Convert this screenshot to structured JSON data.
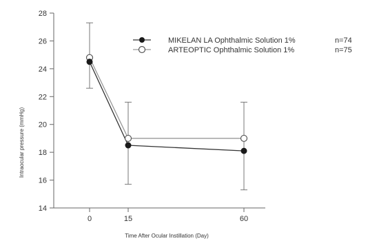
{
  "chart_data": {
    "type": "line",
    "xlabel": "Time After Ocular Instillation (Day)",
    "ylabel": "Intraocular pressure (mmHg)",
    "ylim": [
      14,
      28
    ],
    "yticks": [
      14,
      16,
      18,
      20,
      22,
      24,
      26,
      28
    ],
    "xticks": [
      0,
      15,
      60
    ],
    "grid": false,
    "legend_position": "top-right",
    "series": [
      {
        "name": "MIKELAN LA Ophthalmic Solution 1%",
        "n_label": "n=74",
        "marker": "filled-circle",
        "color": "#1a1a1a",
        "x": [
          0,
          15,
          60
        ],
        "y": [
          24.5,
          18.5,
          18.1
        ],
        "err_low": [
          22.6,
          15.7,
          15.3
        ],
        "err_high": [
          27.3,
          21.6,
          21.6
        ]
      },
      {
        "name": "ARTEOPTIC Ophthalmic Solution 1%",
        "n_label": "n=75",
        "marker": "open-circle",
        "color": "#1a1a1a",
        "x": [
          0,
          15,
          60
        ],
        "y": [
          24.8,
          19.0,
          19.0
        ],
        "err_low": [
          24.8,
          19.0,
          19.0
        ],
        "err_high": [
          24.8,
          19.0,
          19.0
        ]
      }
    ]
  }
}
